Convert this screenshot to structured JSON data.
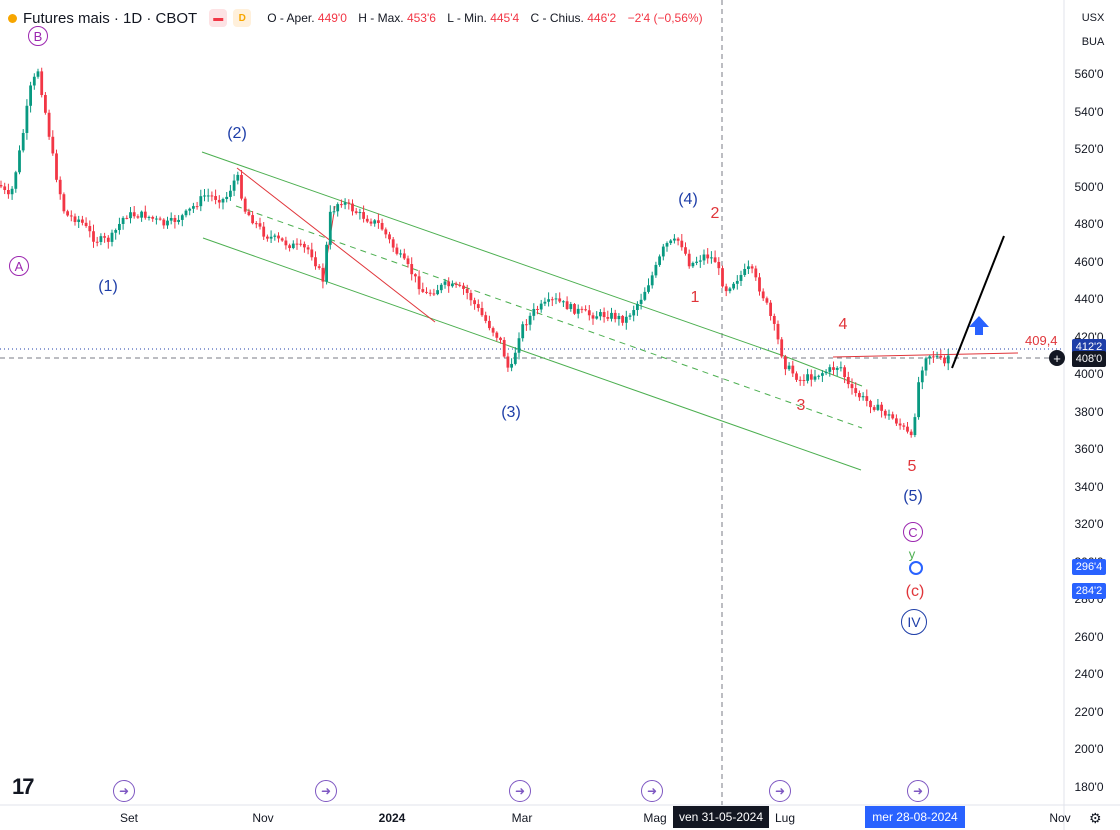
{
  "header": {
    "title": "Futures mais · 1D · CBOT",
    "flag_label": "",
    "d_label": "D",
    "ohlc": [
      {
        "label": "O - Aper.",
        "value": "449'0"
      },
      {
        "label": "H - Max.",
        "value": "453'6"
      },
      {
        "label": "L - Min.",
        "value": "445'4"
      },
      {
        "label": "C - Chius.",
        "value": "446'2"
      },
      {
        "label": "",
        "value": "−2'4 (−0,56%)"
      }
    ]
  },
  "right_toolbar": {
    "currency": "USX",
    "unit": "BUA"
  },
  "price_axis": {
    "labels": [
      "560'0",
      "540'0",
      "520'0",
      "500'0",
      "480'0",
      "460'0",
      "440'0",
      "420'0",
      "400'0",
      "380'0",
      "360'0",
      "340'0",
      "320'0",
      "300'0",
      "280'0",
      "260'0",
      "240'0",
      "220'0",
      "200'0",
      "180'0"
    ],
    "badges": [
      {
        "text": "412'2",
        "bg": "#1e3ea8",
        "fg": "#ffffff"
      },
      {
        "text": "408'0",
        "bg": "#131722",
        "fg": "#ffffff"
      },
      {
        "text": "296'4",
        "bg": "#2962ff",
        "fg": "#ffffff"
      },
      {
        "text": "284'2",
        "bg": "#2962ff",
        "fg": "#ffffff"
      }
    ],
    "level_label": "409,4"
  },
  "time_axis": {
    "labels": [
      "Set",
      "Nov",
      "2024",
      "Mar",
      "Mag",
      "Lug",
      "Nov"
    ],
    "badges": [
      "ven 31-05-2024",
      "mer 28-08-2024"
    ]
  },
  "wave_labels": {
    "A": "A",
    "B": "B",
    "C": "C",
    "IV": "IV",
    "y": "y",
    "w1": "(1)",
    "w2": "(2)",
    "w3": "(3)",
    "w4": "(4)",
    "w5": "(5)",
    "wc": "(c)",
    "r1": "1",
    "r2": "2",
    "r3": "3",
    "r4": "4",
    "r5": "5"
  },
  "colors": {
    "bull": "#089981",
    "bear": "#f23645",
    "channel": "#4caf50",
    "wave_blue": "#1e3ea8",
    "wave_red": "#e0353a",
    "wave_purple": "#9c27b0"
  },
  "icons": {
    "logo": "tradingview-logo",
    "event": "forward-arrow-icon",
    "settings": "gear-icon",
    "add": "plus-circle-icon"
  }
}
